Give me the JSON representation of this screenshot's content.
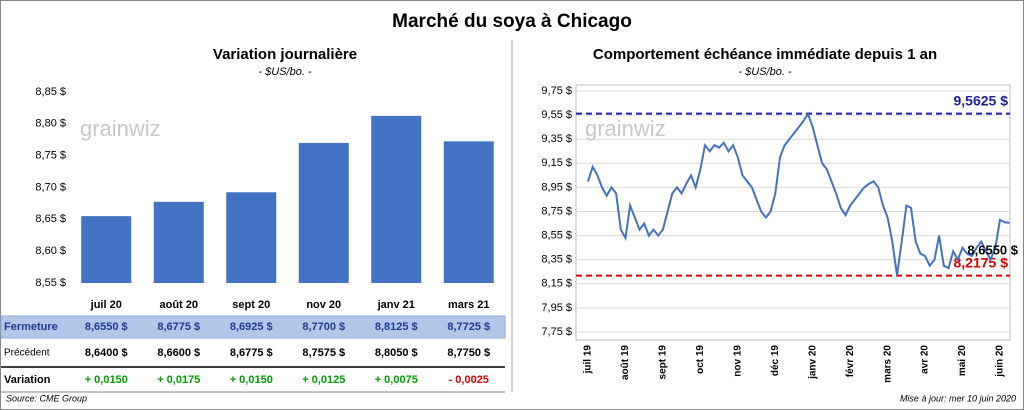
{
  "title": "Marché du soya à Chicago",
  "watermark": "grainwiz",
  "chart_data": [
    {
      "type": "bar",
      "title": "Variation journalière",
      "subtitle": "- $US/bo. -",
      "categories": [
        "juil 20",
        "août 20",
        "sept 20",
        "nov 20",
        "janv 21",
        "mars 21"
      ],
      "values": [
        8.655,
        8.6775,
        8.6925,
        8.77,
        8.8125,
        8.7725
      ],
      "color": "#4472c4",
      "ylim": [
        8.55,
        8.85
      ],
      "yticks": [
        {
          "value": 8.55,
          "label": "8,55 $"
        },
        {
          "value": 8.6,
          "label": "8,60 $"
        },
        {
          "value": 8.65,
          "label": "8,65 $"
        },
        {
          "value": 8.7,
          "label": "8,70 $"
        },
        {
          "value": 8.75,
          "label": "8,75 $"
        },
        {
          "value": 8.8,
          "label": "8,80 $"
        },
        {
          "value": 8.85,
          "label": "8,85 $"
        }
      ]
    },
    {
      "type": "line",
      "title": "Comportement  échéance immédiate depuis 1 an",
      "subtitle": "- $US/bo. -",
      "categories": [
        "juil 19",
        null,
        null,
        null,
        null,
        null,
        null,
        null,
        "août 19",
        null,
        null,
        null,
        null,
        null,
        null,
        null,
        "sept 19",
        null,
        null,
        null,
        null,
        null,
        null,
        null,
        "oct 19",
        null,
        null,
        null,
        null,
        null,
        null,
        null,
        "nov 19",
        null,
        null,
        null,
        null,
        null,
        null,
        null,
        "déc 19",
        null,
        null,
        null,
        null,
        null,
        null,
        null,
        "janv 20",
        null,
        null,
        null,
        null,
        null,
        null,
        null,
        "févr 20",
        null,
        null,
        null,
        null,
        null,
        null,
        null,
        "mars 20",
        null,
        null,
        null,
        null,
        null,
        null,
        null,
        "avr 20",
        null,
        null,
        null,
        null,
        null,
        null,
        null,
        "mai 20",
        null,
        null,
        null,
        null,
        null,
        null,
        null,
        "juin 20",
        null,
        null
      ],
      "values": [
        9.0,
        9.12,
        9.05,
        8.95,
        8.88,
        8.95,
        8.9,
        8.6,
        8.53,
        8.8,
        8.7,
        8.6,
        8.65,
        8.55,
        8.6,
        8.55,
        8.6,
        8.75,
        8.9,
        8.95,
        8.9,
        8.98,
        9.05,
        8.95,
        9.1,
        9.3,
        9.25,
        9.3,
        9.28,
        9.32,
        9.25,
        9.3,
        9.2,
        9.05,
        9.0,
        8.95,
        8.85,
        8.75,
        8.7,
        8.75,
        8.9,
        9.2,
        9.3,
        9.35,
        9.4,
        9.45,
        9.5,
        9.56,
        9.45,
        9.3,
        9.15,
        9.1,
        9.0,
        8.9,
        8.78,
        8.72,
        8.8,
        8.85,
        8.9,
        8.95,
        8.98,
        9.0,
        8.95,
        8.8,
        8.7,
        8.5,
        8.22,
        8.5,
        8.8,
        8.78,
        8.5,
        8.4,
        8.38,
        8.3,
        8.35,
        8.55,
        8.3,
        8.28,
        8.42,
        8.35,
        8.45,
        8.4,
        8.38,
        8.45,
        8.5,
        8.42,
        8.35,
        8.45,
        8.68,
        8.66,
        8.655
      ],
      "color": "#4472c4",
      "ylim": [
        7.75,
        9.75
      ],
      "yticks": [
        {
          "value": 7.75,
          "label": "7,75 $"
        },
        {
          "value": 7.95,
          "label": "7,95 $"
        },
        {
          "value": 8.15,
          "label": "8,15 $"
        },
        {
          "value": 8.35,
          "label": "8,35 $"
        },
        {
          "value": 8.55,
          "label": "8,55 $"
        },
        {
          "value": 8.75,
          "label": "8,75 $"
        },
        {
          "value": 8.95,
          "label": "8,95 $"
        },
        {
          "value": 9.15,
          "label": "9,15 $"
        },
        {
          "value": 9.35,
          "label": "9,35 $"
        },
        {
          "value": 9.55,
          "label": "9,55 $"
        },
        {
          "value": 9.75,
          "label": "9,75 $"
        }
      ],
      "grid": true,
      "reference_lines": [
        {
          "value": 9.5625,
          "label": "9,5625 $",
          "color": "#1f1fa8"
        },
        {
          "value": 8.2175,
          "label": "8,2175 $",
          "color": "#e00000"
        }
      ],
      "annotations": [
        {
          "value": 8.655,
          "label": "8,6550 $"
        }
      ]
    }
  ],
  "table": {
    "rows": [
      {
        "label": "Fermeture",
        "cells": [
          "8,6550  $",
          "8,6775  $",
          "8,6925  $",
          "8,7700  $",
          "8,8125  $",
          "8,7725  $"
        ]
      },
      {
        "label": "Précédent",
        "cells": [
          "8,6400  $",
          "8,6600  $",
          "8,6775  $",
          "8,7575  $",
          "8,8050  $",
          "8,7750  $"
        ]
      },
      {
        "label": "Variation",
        "cells": [
          "+ 0,0150",
          "+ 0,0175",
          "+ 0,0150",
          "+ 0,0125",
          "+ 0,0075",
          "- 0,0025"
        ],
        "colors": [
          "#00a000",
          "#00a000",
          "#00a000",
          "#00a000",
          "#00a000",
          "#e00000"
        ]
      }
    ]
  },
  "source": "Source: CME Group",
  "updated": "Mise à jour: mer 10 juin 2020"
}
